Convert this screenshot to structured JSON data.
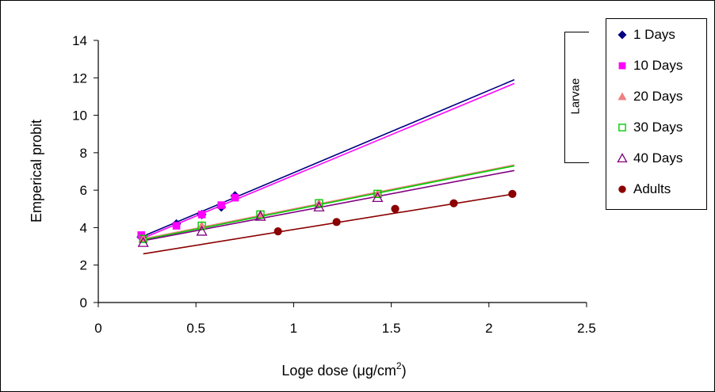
{
  "chart_data": {
    "type": "scatter",
    "xlabel_main": "Loge dose (",
    "xlabel_unit": "μg/cm",
    "xlabel_sup": "2",
    "xlabel_close": ")",
    "ylabel": "Emperical probit",
    "xlim": [
      0,
      2.5
    ],
    "ylim": [
      0,
      14
    ],
    "x_ticks": [
      "0",
      "0.5",
      "1",
      "1.5",
      "2",
      "2.5"
    ],
    "y_ticks": [
      "0",
      "2",
      "4",
      "6",
      "8",
      "10",
      "12",
      "14"
    ],
    "x_tick_values": [
      0,
      0.5,
      1,
      1.5,
      2,
      2.5
    ],
    "y_tick_values": [
      0,
      2,
      4,
      6,
      8,
      10,
      12,
      14
    ],
    "grid": false,
    "legend_position": "right",
    "bracket_label": "Larvae",
    "series": [
      {
        "name": "1 Days",
        "marker": "diamond",
        "color": "#000080",
        "filled": true,
        "x": [
          0.22,
          0.4,
          0.53,
          0.63,
          0.7
        ],
        "y": [
          3.5,
          4.2,
          4.7,
          5.1,
          5.7
        ],
        "fit": {
          "x": [
            0.22,
            2.13
          ],
          "y": [
            3.5,
            11.9
          ],
          "color": "#000080"
        }
      },
      {
        "name": "10 Days",
        "marker": "square",
        "color": "#ff00ff",
        "filled": true,
        "x": [
          0.22,
          0.4,
          0.53,
          0.63,
          0.7
        ],
        "y": [
          3.6,
          4.1,
          4.7,
          5.2,
          5.6
        ],
        "fit": {
          "x": [
            0.22,
            2.13
          ],
          "y": [
            3.4,
            11.7
          ],
          "color": "#ff00ff"
        }
      },
      {
        "name": "20 Days",
        "marker": "triangle",
        "color": "#f08080",
        "filled": true,
        "x": [
          0.23,
          0.53,
          0.83,
          1.13,
          1.43
        ],
        "y": [
          3.4,
          4.1,
          4.7,
          5.3,
          5.8
        ],
        "fit": {
          "x": [
            0.23,
            2.13
          ],
          "y": [
            3.4,
            7.35
          ],
          "color": "#f08080"
        }
      },
      {
        "name": "30 Days",
        "marker": "square-open",
        "color": "#00cc00",
        "filled": false,
        "x": [
          0.23,
          0.53,
          0.83,
          1.13,
          1.43
        ],
        "y": [
          3.4,
          4.1,
          4.7,
          5.3,
          5.8
        ],
        "fit": {
          "x": [
            0.23,
            2.13
          ],
          "y": [
            3.35,
            7.3
          ],
          "color": "#00cc00"
        }
      },
      {
        "name": "40 Days",
        "marker": "triangle-open",
        "color": "#800080",
        "filled": false,
        "x": [
          0.23,
          0.53,
          0.83,
          1.13,
          1.43
        ],
        "y": [
          3.2,
          3.8,
          4.6,
          5.1,
          5.6
        ],
        "fit": {
          "x": [
            0.23,
            2.13
          ],
          "y": [
            3.3,
            7.05
          ],
          "color": "#800080"
        }
      },
      {
        "name": "Adults",
        "marker": "circle",
        "color": "#8b0000",
        "filled": true,
        "x": [
          0.92,
          1.22,
          1.52,
          1.82,
          2.12
        ],
        "y": [
          3.8,
          4.3,
          5.0,
          5.3,
          5.8
        ],
        "fit": {
          "x": [
            0.23,
            2.13
          ],
          "y": [
            2.6,
            5.8
          ],
          "color": "#8b0000"
        }
      }
    ]
  }
}
